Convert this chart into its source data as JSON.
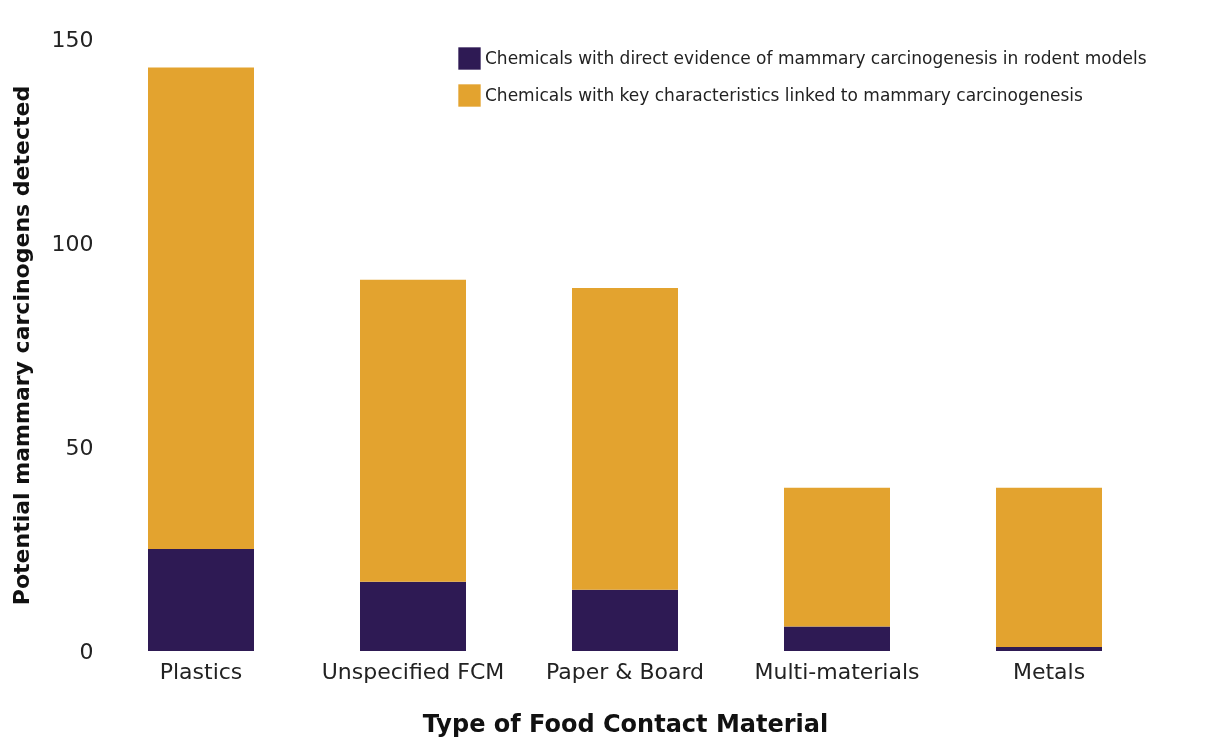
{
  "chart_data": {
    "type": "bar",
    "stacked": true,
    "xlabel": "Type of Food Contact Material",
    "ylabel": "Potential mammary carcinogens detected",
    "categories": [
      "Plastics",
      "Unspecified FCM",
      "Paper & Board",
      "Multi-materials",
      "Metals"
    ],
    "series": [
      {
        "name": "Chemicals with direct evidence of mammary carcinogenesis in rodent models",
        "color": "#2e1a54",
        "values": [
          25,
          17,
          15,
          6,
          1
        ]
      },
      {
        "name": "Chemicals with key characteristics linked to mammary carcinogenesis",
        "color": "#e3a32f",
        "values": [
          118,
          74,
          74,
          34,
          39
        ]
      }
    ],
    "ylim": [
      0,
      150
    ],
    "yticks": [
      0,
      50,
      100,
      150
    ],
    "grid": false,
    "legend": "top right"
  }
}
